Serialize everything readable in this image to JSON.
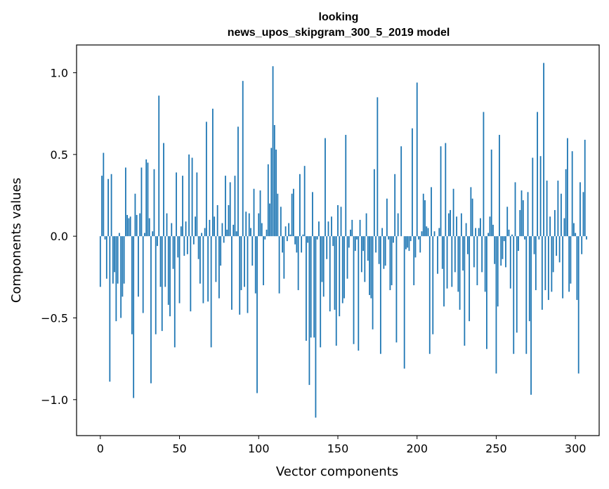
{
  "chart_data": {
    "type": "bar",
    "title_line1": "looking",
    "title_line2": "news_upos_skipgram_300_5_2019 model",
    "xlabel": "Vector components",
    "ylabel": "Components values",
    "xlim": [
      -15,
      315
    ],
    "ylim": [
      -1.22,
      1.17
    ],
    "xticks": [
      0,
      50,
      100,
      150,
      200,
      250,
      300
    ],
    "xtick_labels": [
      "0",
      "50",
      "100",
      "150",
      "200",
      "250",
      "300"
    ],
    "yticks": [
      -1.0,
      -0.5,
      0.0,
      0.5,
      1.0
    ],
    "ytick_labels": [
      "−1.0",
      "−0.5",
      "0.0",
      "0.5",
      "1.0"
    ],
    "grid": false,
    "bar_color": "#1f77b4",
    "values": [
      -0.31,
      0.37,
      0.51,
      -0.02,
      -0.26,
      0.35,
      -0.89,
      0.38,
      -0.29,
      -0.22,
      -0.52,
      -0.29,
      0.02,
      -0.5,
      -0.37,
      -0.29,
      0.42,
      0.13,
      0.11,
      0.12,
      -0.6,
      -0.99,
      0.26,
      0.13,
      -0.37,
      0.14,
      0.42,
      -0.47,
      0.02,
      0.47,
      0.45,
      0.11,
      -0.9,
      0.03,
      0.41,
      -0.6,
      -0.06,
      0.86,
      -0.31,
      -0.58,
      0.57,
      -0.31,
      0.14,
      -0.42,
      -0.49,
      0.08,
      -0.2,
      -0.68,
      0.39,
      -0.13,
      -0.41,
      0.06,
      0.37,
      -0.12,
      0.09,
      -0.11,
      0.5,
      -0.46,
      0.48,
      -0.05,
      0.12,
      0.39,
      -0.14,
      -0.29,
      0.02,
      -0.41,
      0.05,
      0.7,
      -0.4,
      0.1,
      -0.68,
      0.78,
      0.12,
      -0.28,
      0.19,
      -0.38,
      -0.18,
      0.08,
      -0.04,
      0.37,
      0.04,
      0.19,
      0.33,
      -0.45,
      0.07,
      0.37,
      0.03,
      0.67,
      -0.48,
      -0.33,
      0.95,
      -0.31,
      0.15,
      -0.47,
      0.14,
      0.05,
      -0.18,
      0.29,
      -0.35,
      -0.96,
      0.14,
      0.28,
      0.08,
      -0.3,
      -0.02,
      0.04,
      0.44,
      0.2,
      0.54,
      1.04,
      0.68,
      0.53,
      0.26,
      -0.35,
      0.18,
      -0.1,
      -0.26,
      0.06,
      -0.03,
      0.08,
      0.01,
      0.26,
      0.29,
      -0.05,
      -0.1,
      -0.33,
      0.38,
      -0.1,
      0.01,
      0.43,
      -0.64,
      -0.04,
      -0.91,
      -0.62,
      0.27,
      -0.62,
      -1.11,
      -0.02,
      0.09,
      -0.68,
      -0.28,
      -0.37,
      0.6,
      -0.14,
      0.09,
      -0.46,
      0.12,
      -0.06,
      -0.45,
      -0.67,
      0.19,
      -0.49,
      0.18,
      -0.41,
      -0.38,
      0.62,
      -0.26,
      -0.07,
      0.04,
      0.1,
      -0.66,
      -0.09,
      -0.02,
      -0.7,
      0.1,
      -0.22,
      -0.09,
      -0.28,
      0.14,
      -0.15,
      -0.36,
      -0.38,
      -0.57,
      0.41,
      -0.1,
      0.85,
      -0.17,
      -0.72,
      0.05,
      -0.2,
      -0.18,
      0.23,
      -0.02,
      -0.33,
      -0.3,
      -0.04,
      0.38,
      -0.65,
      0.14,
      0.0,
      0.55,
      0.0,
      -0.81,
      -0.08,
      -0.07,
      -0.09,
      -0.03,
      0.66,
      -0.3,
      -0.13,
      0.94,
      -0.02,
      -0.1,
      0.03,
      0.26,
      0.22,
      0.06,
      0.05,
      -0.72,
      0.3,
      -0.6,
      0.03,
      0.0,
      -0.23,
      0.05,
      0.55,
      -0.2,
      -0.43,
      0.57,
      -0.32,
      0.14,
      0.16,
      -0.31,
      0.29,
      -0.22,
      0.12,
      -0.34,
      -0.45,
      0.14,
      -0.21,
      -0.67,
      0.08,
      -0.11,
      -0.52,
      0.3,
      0.23,
      -0.19,
      0.05,
      -0.3,
      0.05,
      0.11,
      -0.22,
      0.76,
      -0.34,
      -0.69,
      0.02,
      0.12,
      0.53,
      0.07,
      -0.17,
      -0.84,
      -0.43,
      0.62,
      -0.18,
      -0.14,
      -0.03,
      -0.19,
      0.18,
      0.04,
      -0.32,
      0.01,
      -0.72,
      0.33,
      -0.59,
      -0.09,
      0.16,
      0.28,
      0.22,
      -0.02,
      -0.72,
      0.27,
      -0.52,
      -0.97,
      0.48,
      -0.11,
      -0.33,
      0.76,
      -0.02,
      0.49,
      -0.45,
      1.06,
      -0.33,
      0.34,
      -0.39,
      0.12,
      -0.34,
      -0.22,
      0.16,
      -0.12,
      0.34,
      -0.16,
      0.26,
      -0.38,
      0.11,
      0.41,
      0.6,
      -0.34,
      -0.29,
      0.52,
      0.08,
      0.02,
      -0.39,
      -0.84,
      0.33,
      -0.11,
      0.27,
      0.59,
      -0.02
    ]
  }
}
